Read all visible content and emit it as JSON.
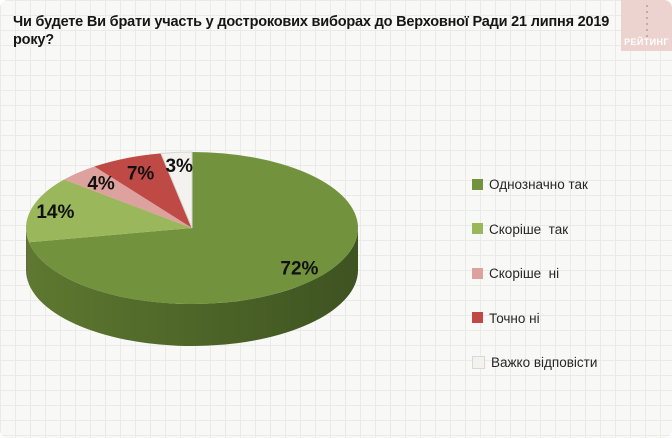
{
  "logo": {
    "text": "РЕЙТИНГ",
    "bg_color": "#ecd3cf",
    "text_color": "#ffffff"
  },
  "chart_data": {
    "type": "pie",
    "title": "Чи будете Ви брати участь у дострокових виборах до Верховної Ради 21 липня 2019 року?",
    "labels": [
      "Однозначно так",
      "Скоріше  так",
      "Скоріше  ні",
      "Точно ні",
      "Важко відповісти"
    ],
    "values": [
      72,
      14,
      4,
      7,
      3
    ],
    "unit": "%",
    "colors": [
      "#72923d",
      "#9ab75c",
      "#dda19e",
      "#bf4a45",
      "#f3f2ef"
    ],
    "side_gradient": [
      "#5e7830",
      "#3e5321"
    ],
    "slice_strokes": [
      null,
      null,
      null,
      null,
      "#d8d7d3"
    ],
    "label_radius": [
      0.84,
      0.85,
      0.8,
      0.78,
      0.82
    ],
    "start_angle_deg": 0,
    "clockwise": true,
    "effect": "3d",
    "depth_3d": 42,
    "legend_position": "right",
    "legend_marker_border": "#d9d8d4",
    "grid_background": true
  }
}
